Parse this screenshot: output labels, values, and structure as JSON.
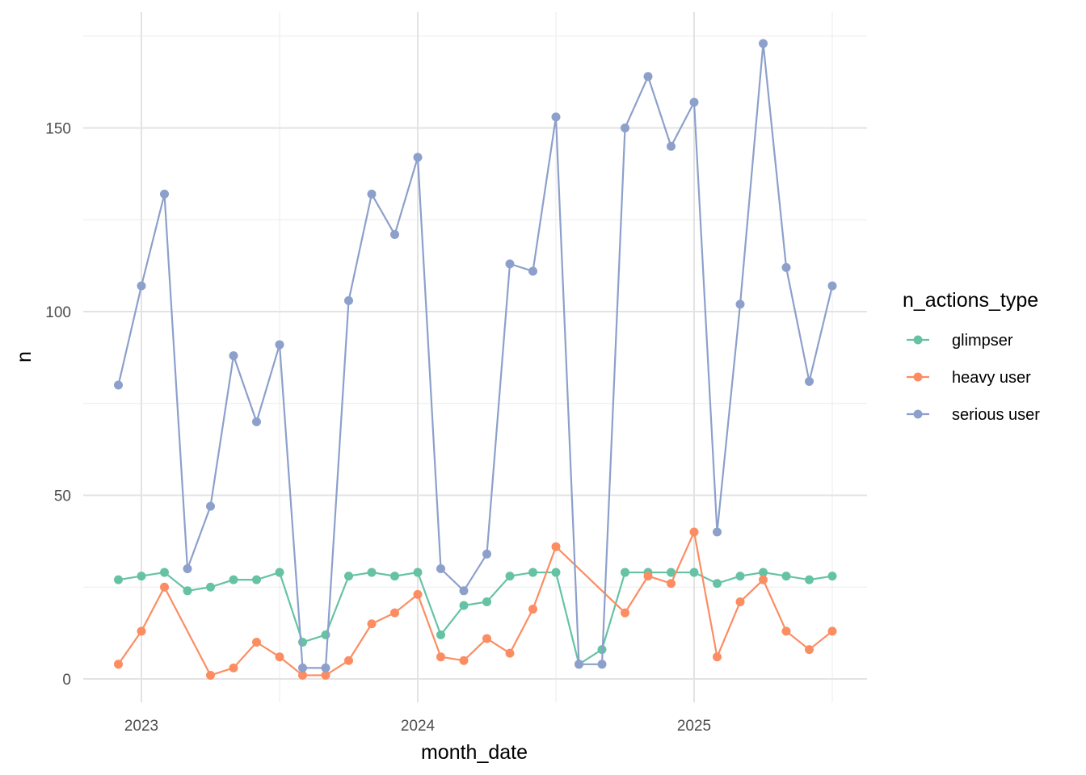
{
  "chart_data": {
    "type": "line",
    "title": "",
    "xlabel": "month_date",
    "ylabel": "n",
    "x_ticks": [
      "2023",
      "2024",
      "2025"
    ],
    "y_ticks": [
      0,
      50,
      100,
      150
    ],
    "ylim": [
      -6,
      182
    ],
    "grid": true,
    "legend": {
      "title": "n_actions_type",
      "position": "right"
    },
    "x": [
      "2022-12",
      "2023-01",
      "2023-02",
      "2023-03",
      "2023-04",
      "2023-05",
      "2023-06",
      "2023-07",
      "2023-08",
      "2023-09",
      "2023-10",
      "2023-11",
      "2023-12",
      "2024-01",
      "2024-02",
      "2024-03",
      "2024-04",
      "2024-05",
      "2024-06",
      "2024-07",
      "2024-08",
      "2024-09",
      "2024-10",
      "2024-11",
      "2024-12",
      "2025-01",
      "2025-02",
      "2025-03",
      "2025-04",
      "2025-05",
      "2025-06",
      "2025-07"
    ],
    "series": [
      {
        "name": "glimpser",
        "color": "#66c2a5",
        "values": [
          27,
          28,
          29,
          24,
          25,
          27,
          27,
          29,
          10,
          12,
          28,
          29,
          28,
          29,
          12,
          20,
          21,
          28,
          29,
          29,
          4,
          8,
          29,
          29,
          29,
          29,
          26,
          28,
          29,
          28,
          27,
          28
        ]
      },
      {
        "name": "heavy user",
        "color": "#fc8d62",
        "values": [
          4,
          13,
          25,
          null,
          1,
          3,
          10,
          6,
          1,
          1,
          5,
          15,
          18,
          23,
          6,
          5,
          11,
          7,
          19,
          36,
          null,
          null,
          18,
          28,
          26,
          40,
          6,
          21,
          27,
          13,
          8,
          13
        ]
      },
      {
        "name": "serious user",
        "color": "#8da0cb",
        "values": [
          80,
          107,
          132,
          30,
          47,
          88,
          70,
          91,
          3,
          3,
          103,
          132,
          121,
          142,
          30,
          24,
          34,
          113,
          111,
          153,
          4,
          4,
          150,
          164,
          145,
          157,
          40,
          102,
          173,
          112,
          81,
          107
        ]
      }
    ]
  }
}
